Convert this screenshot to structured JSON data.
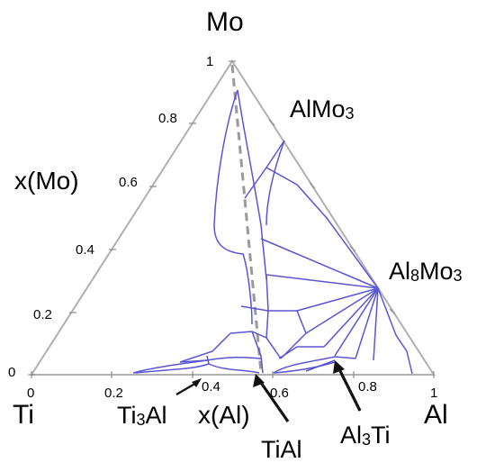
{
  "corners": {
    "top": "Mo",
    "left": "Ti",
    "right": "Al"
  },
  "axes": {
    "left_axis_label": "x(Mo)",
    "bottom_axis_label": "x(Al)",
    "left_ticks": [
      "1",
      "0.8",
      "0.6",
      "0.4",
      "0.2",
      "0"
    ],
    "bottom_ticks": [
      "0",
      "0.2",
      "0.4",
      "0.6",
      "0.8",
      "1"
    ]
  },
  "phases": {
    "almo3": {
      "main": "AlMo",
      "sub": "3"
    },
    "al8mo3": {
      "main": "Al",
      "sub1": "8",
      "main2": "Mo",
      "sub2": "3"
    },
    "ti3al": {
      "main": "Ti",
      "sub": "3",
      "main2": "Al"
    },
    "tial": {
      "main": "TiAl"
    },
    "al3ti": {
      "main": "Al",
      "sub": "3",
      "main2": "Ti"
    }
  },
  "colors": {
    "phase_boundary": "#5b55d6",
    "frame": "#b0b0b0",
    "dashed_line": "#9a9a9a"
  }
}
